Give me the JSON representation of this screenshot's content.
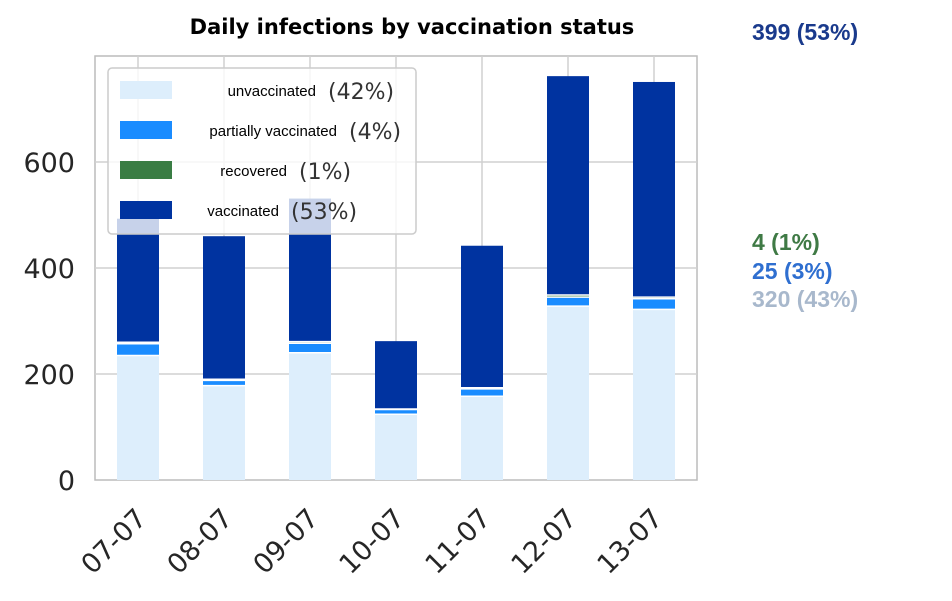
{
  "chart_data": {
    "type": "bar",
    "stacked": true,
    "title": "Daily infections by vaccination status",
    "categories": [
      "07-07",
      "08-07",
      "09-07",
      "10-07",
      "11-07",
      "12-07",
      "13-07"
    ],
    "ylim": [
      0,
      800
    ],
    "yticks": [
      0,
      200,
      400,
      600
    ],
    "grid": true,
    "legend_position": "top-left",
    "series": [
      {
        "name": "unvaccinated",
        "legend_pct": "(42%)",
        "color": "#ddeefc",
        "values": [
          235,
          178,
          240,
          124,
          158,
          328,
          322
        ]
      },
      {
        "name": "partially vaccinated",
        "legend_pct": "(4%)",
        "color": "#1a8cff",
        "values": [
          22,
          10,
          18,
          9,
          14,
          17,
          20
        ]
      },
      {
        "name": "recovered",
        "legend_pct": "(1%)",
        "color": "#3a7d44",
        "values": [
          3,
          2,
          3,
          1,
          2,
          4,
          3
        ]
      },
      {
        "name": "vaccinated",
        "legend_pct": "(53%)",
        "color": "#0033a0",
        "values": [
          233,
          270,
          270,
          128,
          268,
          413,
          406
        ]
      }
    ],
    "annotations": [
      {
        "text": "399 (53%)",
        "color": "#1a3a8c"
      },
      {
        "text": "4 (1%)",
        "color": "#3f7a45"
      },
      {
        "text": "25 (3%)",
        "color": "#2f6fd0"
      },
      {
        "text": "320 (43%)",
        "color": "#a8b8cc"
      }
    ]
  }
}
